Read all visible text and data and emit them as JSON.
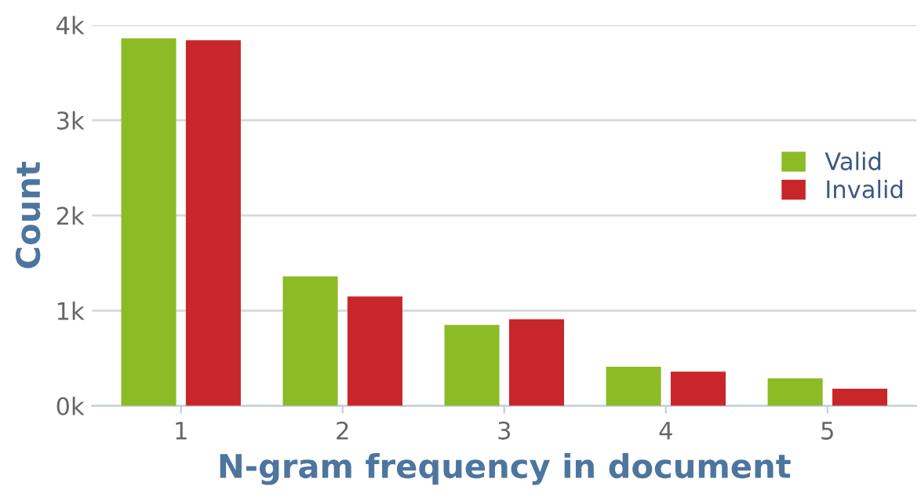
{
  "chart_data": {
    "type": "bar",
    "xlabel": "N-gram frequency in document",
    "ylabel": "Count",
    "categories": [
      "1",
      "2",
      "3",
      "4",
      "5"
    ],
    "series": [
      {
        "name": "Valid",
        "color": "#8cbb26",
        "values": [
          3860,
          1360,
          850,
          410,
          290
        ]
      },
      {
        "name": "Invalid",
        "color": "#c8262a",
        "values": [
          3840,
          1150,
          910,
          360,
          180
        ]
      }
    ],
    "ylim": [
      0,
      4000
    ],
    "yticks": [
      {
        "value": 0,
        "label": "0k"
      },
      {
        "value": 1000,
        "label": "1k"
      },
      {
        "value": 2000,
        "label": "2k"
      },
      {
        "value": 3000,
        "label": "3k"
      },
      {
        "value": 4000,
        "label": "4k"
      }
    ],
    "grid": "y",
    "legend": "right"
  }
}
